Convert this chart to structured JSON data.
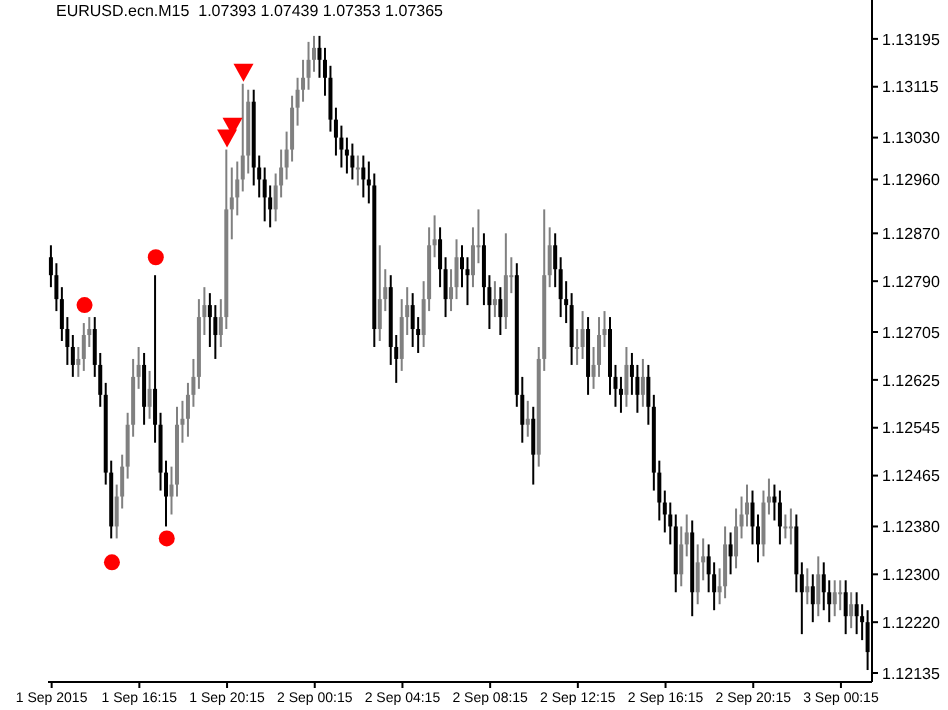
{
  "chart_data": {
    "type": "candlestick",
    "title": "EURUSD.ecn.M15  1.07393 1.07439 1.07353 1.07365",
    "x": [
      "2015-09-01T12:15",
      "2015-09-01T12:30",
      "2015-09-01T12:45",
      "2015-09-01T13:00",
      "2015-09-01T13:15",
      "2015-09-01T13:30",
      "2015-09-01T13:45",
      "2015-09-01T14:00",
      "2015-09-01T14:15",
      "2015-09-01T14:30",
      "2015-09-01T14:45",
      "2015-09-01T15:00",
      "2015-09-01T15:15",
      "2015-09-01T15:30",
      "2015-09-01T15:45",
      "2015-09-01T16:00",
      "2015-09-01T16:15",
      "2015-09-01T16:30",
      "2015-09-01T16:45",
      "2015-09-01T17:00",
      "2015-09-01T17:15",
      "2015-09-01T17:30",
      "2015-09-01T17:45",
      "2015-09-01T18:00",
      "2015-09-01T18:15",
      "2015-09-01T18:30",
      "2015-09-01T18:45",
      "2015-09-01T19:00",
      "2015-09-01T19:15",
      "2015-09-01T19:30",
      "2015-09-01T19:45",
      "2015-09-01T20:00",
      "2015-09-01T20:15",
      "2015-09-01T20:30",
      "2015-09-01T20:45",
      "2015-09-01T21:00",
      "2015-09-01T21:15",
      "2015-09-01T21:30",
      "2015-09-01T21:45",
      "2015-09-01T22:00",
      "2015-09-01T22:15",
      "2015-09-01T22:30",
      "2015-09-01T22:45",
      "2015-09-01T23:00",
      "2015-09-01T23:15",
      "2015-09-01T23:30",
      "2015-09-01T23:45",
      "2015-09-02T00:00",
      "2015-09-02T00:15",
      "2015-09-02T00:30",
      "2015-09-02T00:45",
      "2015-09-02T01:00",
      "2015-09-02T01:15",
      "2015-09-02T01:30",
      "2015-09-02T01:45",
      "2015-09-02T02:00",
      "2015-09-02T02:15",
      "2015-09-02T02:30",
      "2015-09-02T02:45",
      "2015-09-02T03:00",
      "2015-09-02T03:15",
      "2015-09-02T03:30",
      "2015-09-02T03:45",
      "2015-09-02T04:00",
      "2015-09-02T04:15",
      "2015-09-02T04:30",
      "2015-09-02T04:45",
      "2015-09-02T05:00",
      "2015-09-02T05:15",
      "2015-09-02T05:30",
      "2015-09-02T05:45",
      "2015-09-02T06:00",
      "2015-09-02T06:15",
      "2015-09-02T06:30",
      "2015-09-02T06:45",
      "2015-09-02T07:00",
      "2015-09-02T07:15",
      "2015-09-02T07:30",
      "2015-09-02T07:45",
      "2015-09-02T08:00",
      "2015-09-02T08:15",
      "2015-09-02T08:30",
      "2015-09-02T08:45",
      "2015-09-02T09:00",
      "2015-09-02T09:15",
      "2015-09-02T09:30",
      "2015-09-02T09:45",
      "2015-09-02T10:00",
      "2015-09-02T10:15",
      "2015-09-02T10:30",
      "2015-09-02T10:45",
      "2015-09-02T11:00",
      "2015-09-02T11:15",
      "2015-09-02T11:30",
      "2015-09-02T11:45",
      "2015-09-02T12:00",
      "2015-09-02T12:15",
      "2015-09-02T12:30",
      "2015-09-02T12:45",
      "2015-09-02T13:00",
      "2015-09-02T13:15",
      "2015-09-02T13:30",
      "2015-09-02T13:45",
      "2015-09-02T14:00",
      "2015-09-02T14:15",
      "2015-09-02T14:30",
      "2015-09-02T14:45",
      "2015-09-02T15:00",
      "2015-09-02T15:15",
      "2015-09-02T15:30",
      "2015-09-02T15:45",
      "2015-09-02T16:00",
      "2015-09-02T16:15",
      "2015-09-02T16:30",
      "2015-09-02T16:45",
      "2015-09-02T17:00",
      "2015-09-02T17:15",
      "2015-09-02T17:30",
      "2015-09-02T17:45",
      "2015-09-02T18:00",
      "2015-09-02T18:15",
      "2015-09-02T18:30",
      "2015-09-02T18:45",
      "2015-09-02T19:00",
      "2015-09-02T19:15",
      "2015-09-02T19:30",
      "2015-09-02T19:45",
      "2015-09-02T20:00",
      "2015-09-02T20:15",
      "2015-09-02T20:30",
      "2015-09-02T20:45",
      "2015-09-02T21:00",
      "2015-09-02T21:15",
      "2015-09-02T21:30",
      "2015-09-02T21:45",
      "2015-09-02T22:00",
      "2015-09-02T22:15",
      "2015-09-02T22:30",
      "2015-09-02T22:45",
      "2015-09-02T23:00",
      "2015-09-02T23:15",
      "2015-09-02T23:30",
      "2015-09-02T23:45",
      "2015-09-03T00:00",
      "2015-09-03T00:15",
      "2015-09-03T00:30",
      "2015-09-03T00:45",
      "2015-09-03T01:00",
      "2015-09-03T01:15",
      "2015-09-03T01:30"
    ],
    "ohlc": [
      [
        1.1283,
        1.1285,
        1.1278,
        1.128
      ],
      [
        1.128,
        1.1282,
        1.1274,
        1.1276
      ],
      [
        1.1276,
        1.1278,
        1.1269,
        1.1271
      ],
      [
        1.1271,
        1.1273,
        1.1265,
        1.1268
      ],
      [
        1.1268,
        1.127,
        1.1263,
        1.1265
      ],
      [
        1.1265,
        1.1268,
        1.1263,
        1.1266
      ],
      [
        1.1266,
        1.1272,
        1.1264,
        1.127
      ],
      [
        1.127,
        1.1273,
        1.1268,
        1.1271
      ],
      [
        1.1271,
        1.1273,
        1.1263,
        1.1265
      ],
      [
        1.1265,
        1.1267,
        1.1258,
        1.126
      ],
      [
        1.126,
        1.1262,
        1.1245,
        1.1247
      ],
      [
        1.1247,
        1.1249,
        1.1236,
        1.1238
      ],
      [
        1.1238,
        1.1245,
        1.1236,
        1.1243
      ],
      [
        1.1243,
        1.125,
        1.1241,
        1.1248
      ],
      [
        1.1248,
        1.1257,
        1.1246,
        1.1255
      ],
      [
        1.1255,
        1.1266,
        1.1253,
        1.1263
      ],
      [
        1.1263,
        1.1268,
        1.1261,
        1.1265
      ],
      [
        1.1265,
        1.1267,
        1.1255,
        1.1258
      ],
      [
        1.1258,
        1.1264,
        1.1256,
        1.1261
      ],
      [
        1.1261,
        1.128,
        1.1252,
        1.1255
      ],
      [
        1.1255,
        1.1257,
        1.1244,
        1.1247
      ],
      [
        1.1247,
        1.1249,
        1.1238,
        1.1243
      ],
      [
        1.1243,
        1.1248,
        1.124,
        1.1245
      ],
      [
        1.1245,
        1.1258,
        1.1243,
        1.1255
      ],
      [
        1.1255,
        1.1259,
        1.1252,
        1.1256
      ],
      [
        1.1256,
        1.1262,
        1.1253,
        1.126
      ],
      [
        1.126,
        1.1266,
        1.1258,
        1.1263
      ],
      [
        1.1263,
        1.1276,
        1.1261,
        1.1273
      ],
      [
        1.1273,
        1.1278,
        1.127,
        1.1275
      ],
      [
        1.1275,
        1.1277,
        1.1268,
        1.1273
      ],
      [
        1.1273,
        1.1275,
        1.1266,
        1.127
      ],
      [
        1.127,
        1.1276,
        1.1268,
        1.1273
      ],
      [
        1.1273,
        1.1301,
        1.1271,
        1.1291
      ],
      [
        1.1291,
        1.1298,
        1.1286,
        1.1293
      ],
      [
        1.1293,
        1.1299,
        1.129,
        1.1296
      ],
      [
        1.1296,
        1.1312,
        1.1294,
        1.13
      ],
      [
        1.13,
        1.1311,
        1.1297,
        1.1309
      ],
      [
        1.1309,
        1.1311,
        1.1295,
        1.1298
      ],
      [
        1.1298,
        1.13,
        1.1293,
        1.1296
      ],
      [
        1.1296,
        1.1298,
        1.1289,
        1.1293
      ],
      [
        1.1293,
        1.1295,
        1.1288,
        1.1291
      ],
      [
        1.1291,
        1.1297,
        1.1289,
        1.1295
      ],
      [
        1.1295,
        1.1301,
        1.1293,
        1.1298
      ],
      [
        1.1298,
        1.1304,
        1.1296,
        1.1301
      ],
      [
        1.1301,
        1.131,
        1.1299,
        1.1308
      ],
      [
        1.1308,
        1.1313,
        1.1305,
        1.1311
      ],
      [
        1.1311,
        1.1316,
        1.1309,
        1.1313
      ],
      [
        1.1313,
        1.1319,
        1.1311,
        1.1316
      ],
      [
        1.1316,
        1.132,
        1.1314,
        1.1318
      ],
      [
        1.1318,
        1.132,
        1.1313,
        1.1316
      ],
      [
        1.1316,
        1.1318,
        1.131,
        1.1313
      ],
      [
        1.1313,
        1.1315,
        1.1304,
        1.1306
      ],
      [
        1.1306,
        1.1308,
        1.13,
        1.1303
      ],
      [
        1.1303,
        1.1305,
        1.1298,
        1.1301
      ],
      [
        1.1301,
        1.1303,
        1.1297,
        1.13
      ],
      [
        1.13,
        1.1302,
        1.1296,
        1.1298
      ],
      [
        1.1298,
        1.13,
        1.1295,
        1.1298
      ],
      [
        1.1298,
        1.13,
        1.1293,
        1.1296
      ],
      [
        1.1296,
        1.1299,
        1.1292,
        1.1295
      ],
      [
        1.1295,
        1.1297,
        1.1268,
        1.1271
      ],
      [
        1.1271,
        1.1285,
        1.1269,
        1.1276
      ],
      [
        1.1276,
        1.1281,
        1.1274,
        1.1278
      ],
      [
        1.1278,
        1.128,
        1.1265,
        1.1268
      ],
      [
        1.1268,
        1.127,
        1.1262,
        1.1266
      ],
      [
        1.1266,
        1.1276,
        1.1264,
        1.1273
      ],
      [
        1.1273,
        1.1278,
        1.127,
        1.1275
      ],
      [
        1.1275,
        1.1277,
        1.1268,
        1.1271
      ],
      [
        1.1271,
        1.1273,
        1.1267,
        1.127
      ],
      [
        1.127,
        1.1279,
        1.1268,
        1.1276
      ],
      [
        1.1276,
        1.1288,
        1.1274,
        1.1285
      ],
      [
        1.1285,
        1.129,
        1.1283,
        1.1286
      ],
      [
        1.1286,
        1.1288,
        1.1278,
        1.1281
      ],
      [
        1.1281,
        1.1283,
        1.1273,
        1.1276
      ],
      [
        1.1276,
        1.1281,
        1.1274,
        1.1278
      ],
      [
        1.1278,
        1.1286,
        1.1276,
        1.1283
      ],
      [
        1.1283,
        1.1285,
        1.1278,
        1.1281
      ],
      [
        1.1281,
        1.1283,
        1.1275,
        1.128
      ],
      [
        1.128,
        1.1288,
        1.1278,
        1.1285
      ],
      [
        1.1285,
        1.1291,
        1.1282,
        1.1285
      ],
      [
        1.1285,
        1.1287,
        1.1275,
        1.1278
      ],
      [
        1.1278,
        1.128,
        1.1271,
        1.1275
      ],
      [
        1.1275,
        1.1279,
        1.1273,
        1.1276
      ],
      [
        1.1276,
        1.1278,
        1.127,
        1.1273
      ],
      [
        1.1273,
        1.1287,
        1.1271,
        1.128
      ],
      [
        1.128,
        1.1283,
        1.1277,
        1.128
      ],
      [
        1.128,
        1.1282,
        1.1258,
        1.126
      ],
      [
        1.126,
        1.1263,
        1.1252,
        1.1255
      ],
      [
        1.1255,
        1.1259,
        1.1253,
        1.1256
      ],
      [
        1.1256,
        1.1258,
        1.1245,
        1.125
      ],
      [
        1.125,
        1.1268,
        1.1248,
        1.1266
      ],
      [
        1.1266,
        1.1291,
        1.1264,
        1.128
      ],
      [
        1.128,
        1.1288,
        1.1278,
        1.1285
      ],
      [
        1.1285,
        1.1287,
        1.1278,
        1.1281
      ],
      [
        1.1281,
        1.1283,
        1.1273,
        1.1276
      ],
      [
        1.1276,
        1.1279,
        1.1272,
        1.1275
      ],
      [
        1.1275,
        1.1277,
        1.1265,
        1.1268
      ],
      [
        1.1268,
        1.1271,
        1.1265,
        1.1268
      ],
      [
        1.1268,
        1.1274,
        1.1266,
        1.1271
      ],
      [
        1.1271,
        1.1273,
        1.126,
        1.1263
      ],
      [
        1.1263,
        1.1268,
        1.1261,
        1.1265
      ],
      [
        1.1265,
        1.1273,
        1.1263,
        1.127
      ],
      [
        1.127,
        1.1274,
        1.1268,
        1.1271
      ],
      [
        1.1271,
        1.1273,
        1.126,
        1.1263
      ],
      [
        1.1263,
        1.1265,
        1.1258,
        1.1261
      ],
      [
        1.1261,
        1.1263,
        1.1257,
        1.126
      ],
      [
        1.126,
        1.1268,
        1.1258,
        1.1265
      ],
      [
        1.1265,
        1.1267,
        1.126,
        1.1263
      ],
      [
        1.1263,
        1.1265,
        1.1257,
        1.126
      ],
      [
        1.126,
        1.1266,
        1.1258,
        1.1263
      ],
      [
        1.1263,
        1.1265,
        1.1255,
        1.1258
      ],
      [
        1.1258,
        1.126,
        1.1244,
        1.1247
      ],
      [
        1.1247,
        1.1249,
        1.1239,
        1.1242
      ],
      [
        1.1242,
        1.1244,
        1.1237,
        1.124
      ],
      [
        1.124,
        1.1242,
        1.1235,
        1.1238
      ],
      [
        1.1238,
        1.124,
        1.1227,
        1.123
      ],
      [
        1.123,
        1.1238,
        1.1228,
        1.1235
      ],
      [
        1.1235,
        1.124,
        1.1233,
        1.1237
      ],
      [
        1.1237,
        1.1239,
        1.1223,
        1.1227
      ],
      [
        1.1227,
        1.1235,
        1.1225,
        1.1232
      ],
      [
        1.1232,
        1.1236,
        1.1229,
        1.1233
      ],
      [
        1.1233,
        1.1235,
        1.1227,
        1.123
      ],
      [
        1.123,
        1.1232,
        1.1224,
        1.1227
      ],
      [
        1.1227,
        1.1231,
        1.1225,
        1.1228
      ],
      [
        1.1228,
        1.1238,
        1.1226,
        1.1235
      ],
      [
        1.1235,
        1.1237,
        1.123,
        1.1233
      ],
      [
        1.1233,
        1.1241,
        1.1231,
        1.1238
      ],
      [
        1.1238,
        1.1243,
        1.1236,
        1.124
      ],
      [
        1.124,
        1.1245,
        1.1238,
        1.1242
      ],
      [
        1.1242,
        1.1244,
        1.1235,
        1.1238
      ],
      [
        1.1238,
        1.124,
        1.1232,
        1.1235
      ],
      [
        1.1235,
        1.1244,
        1.1233,
        1.1242
      ],
      [
        1.1242,
        1.1246,
        1.124,
        1.1243
      ],
      [
        1.1243,
        1.1245,
        1.1239,
        1.1242
      ],
      [
        1.1242,
        1.1244,
        1.1235,
        1.1238
      ],
      [
        1.1238,
        1.124,
        1.1236,
        1.1238
      ],
      [
        1.1238,
        1.1241,
        1.1235,
        1.1238
      ],
      [
        1.1238,
        1.124,
        1.1227,
        1.123
      ],
      [
        1.123,
        1.1232,
        1.122,
        1.1227
      ],
      [
        1.1227,
        1.1231,
        1.1225,
        1.1228
      ],
      [
        1.1228,
        1.123,
        1.1222,
        1.1225
      ],
      [
        1.1225,
        1.1233,
        1.1223,
        1.123
      ],
      [
        1.123,
        1.1232,
        1.1224,
        1.1227
      ],
      [
        1.1227,
        1.1229,
        1.1222,
        1.1225
      ],
      [
        1.1225,
        1.1229,
        1.1223,
        1.1227
      ],
      [
        1.1227,
        1.1229,
        1.1224,
        1.1227
      ],
      [
        1.1227,
        1.1229,
        1.122,
        1.1223
      ],
      [
        1.1223,
        1.1227,
        1.1221,
        1.1225
      ],
      [
        1.1225,
        1.1227,
        1.122,
        1.1223
      ],
      [
        1.1223,
        1.1225,
        1.1219,
        1.1222
      ],
      [
        1.1222,
        1.1224,
        1.1214,
        1.1217
      ]
    ],
    "colors": [
      "#000000",
      "#000000",
      "#000000",
      "#000000",
      "#000000",
      "#808080",
      "#808080",
      "#808080",
      "#000000",
      "#000000",
      "#000000",
      "#000000",
      "#808080",
      "#808080",
      "#808080",
      "#808080",
      "#808080",
      "#000000",
      "#808080",
      "#000000",
      "#000000",
      "#000000",
      "#808080",
      "#808080",
      "#808080",
      "#808080",
      "#808080",
      "#808080",
      "#808080",
      "#000000",
      "#000000",
      "#808080",
      "#808080",
      "#808080",
      "#808080",
      "#808080",
      "#808080",
      "#000000",
      "#000000",
      "#000000",
      "#000000",
      "#808080",
      "#808080",
      "#808080",
      "#808080",
      "#808080",
      "#808080",
      "#808080",
      "#808080",
      "#000000",
      "#000000",
      "#000000",
      "#000000",
      "#000000",
      "#000000",
      "#000000",
      "#808080",
      "#000000",
      "#000000",
      "#000000",
      "#808080",
      "#808080",
      "#000000",
      "#000000",
      "#808080",
      "#808080",
      "#000000",
      "#000000",
      "#808080",
      "#808080",
      "#808080",
      "#000000",
      "#000000",
      "#808080",
      "#808080",
      "#000000",
      "#000000",
      "#808080",
      "#808080",
      "#000000",
      "#000000",
      "#808080",
      "#000000",
      "#808080",
      "#808080",
      "#000000",
      "#000000",
      "#808080",
      "#000000",
      "#808080",
      "#808080",
      "#808080",
      "#000000",
      "#000000",
      "#000000",
      "#000000",
      "#808080",
      "#808080",
      "#000000",
      "#808080",
      "#808080",
      "#808080",
      "#000000",
      "#000000",
      "#000000",
      "#808080",
      "#000000",
      "#000000",
      "#808080",
      "#000000",
      "#000000",
      "#000000",
      "#000000",
      "#000000",
      "#000000",
      "#808080",
      "#808080",
      "#000000",
      "#808080",
      "#808080",
      "#000000",
      "#000000",
      "#808080",
      "#808080",
      "#000000",
      "#808080",
      "#808080",
      "#808080",
      "#000000",
      "#000000",
      "#808080",
      "#808080",
      "#000000",
      "#000000",
      "#808080",
      "#808080",
      "#000000",
      "#000000",
      "#808080",
      "#000000",
      "#808080",
      "#000000",
      "#000000",
      "#808080",
      "#808080",
      "#000000",
      "#808080",
      "#000000",
      "#000000",
      "#000000"
    ],
    "series": [
      {
        "type": "scatter",
        "color": "#ff0000",
        "marker": "circle",
        "x": [
          "2015-09-01T13:45",
          "2015-09-01T15:00",
          "2015-09-01T17:00",
          "2015-09-01T17:30"
        ],
        "values": [
          1.1275,
          1.1232,
          1.1283,
          1.1236
        ]
      },
      {
        "type": "scatter",
        "color": "#ff0000",
        "marker": "triangle",
        "x": [
          "2015-09-01T20:15",
          "2015-09-01T20:30",
          "2015-09-01T21:00"
        ],
        "values": [
          1.1303,
          1.1305,
          1.1314
        ]
      }
    ],
    "xlim": [
      "2015-09-01T12:05",
      "2015-09-03T01:40"
    ],
    "xticks": [
      {
        "value": "2015-09-01T12:15",
        "label": "1 Sep 2015"
      },
      {
        "value": "2015-09-01T16:15",
        "label": "1 Sep 16:15"
      },
      {
        "value": "2015-09-01T20:15",
        "label": "1 Sep 20:15"
      },
      {
        "value": "2015-09-02T00:15",
        "label": "2 Sep 00:15"
      },
      {
        "value": "2015-09-02T04:15",
        "label": "2 Sep 04:15"
      },
      {
        "value": "2015-09-02T08:15",
        "label": "2 Sep 08:15"
      },
      {
        "value": "2015-09-02T12:15",
        "label": "2 Sep 12:15"
      },
      {
        "value": "2015-09-02T16:15",
        "label": "2 Sep 16:15"
      },
      {
        "value": "2015-09-02T20:15",
        "label": "2 Sep 20:15"
      },
      {
        "value": "2015-09-03T00:15",
        "label": "3 Sep 00:15"
      }
    ],
    "ylim": [
      1.1212,
      1.1326
    ],
    "yticks": [
      1.12135,
      {
        "value": 1.1222,
        "label": "1.12220"
      },
      {
        "value": 1.123,
        "label": "1.12300"
      },
      {
        "value": 1.1238,
        "label": "1.12380"
      },
      1.12465,
      1.12545,
      1.12625,
      1.12705,
      {
        "value": 1.1279,
        "label": "1.12790"
      },
      {
        "value": 1.1287,
        "label": "1.12870"
      },
      {
        "value": 1.1296,
        "label": "1.12960"
      },
      {
        "value": 1.1303,
        "label": "1.13030"
      },
      1.13115,
      1.13195
    ]
  }
}
